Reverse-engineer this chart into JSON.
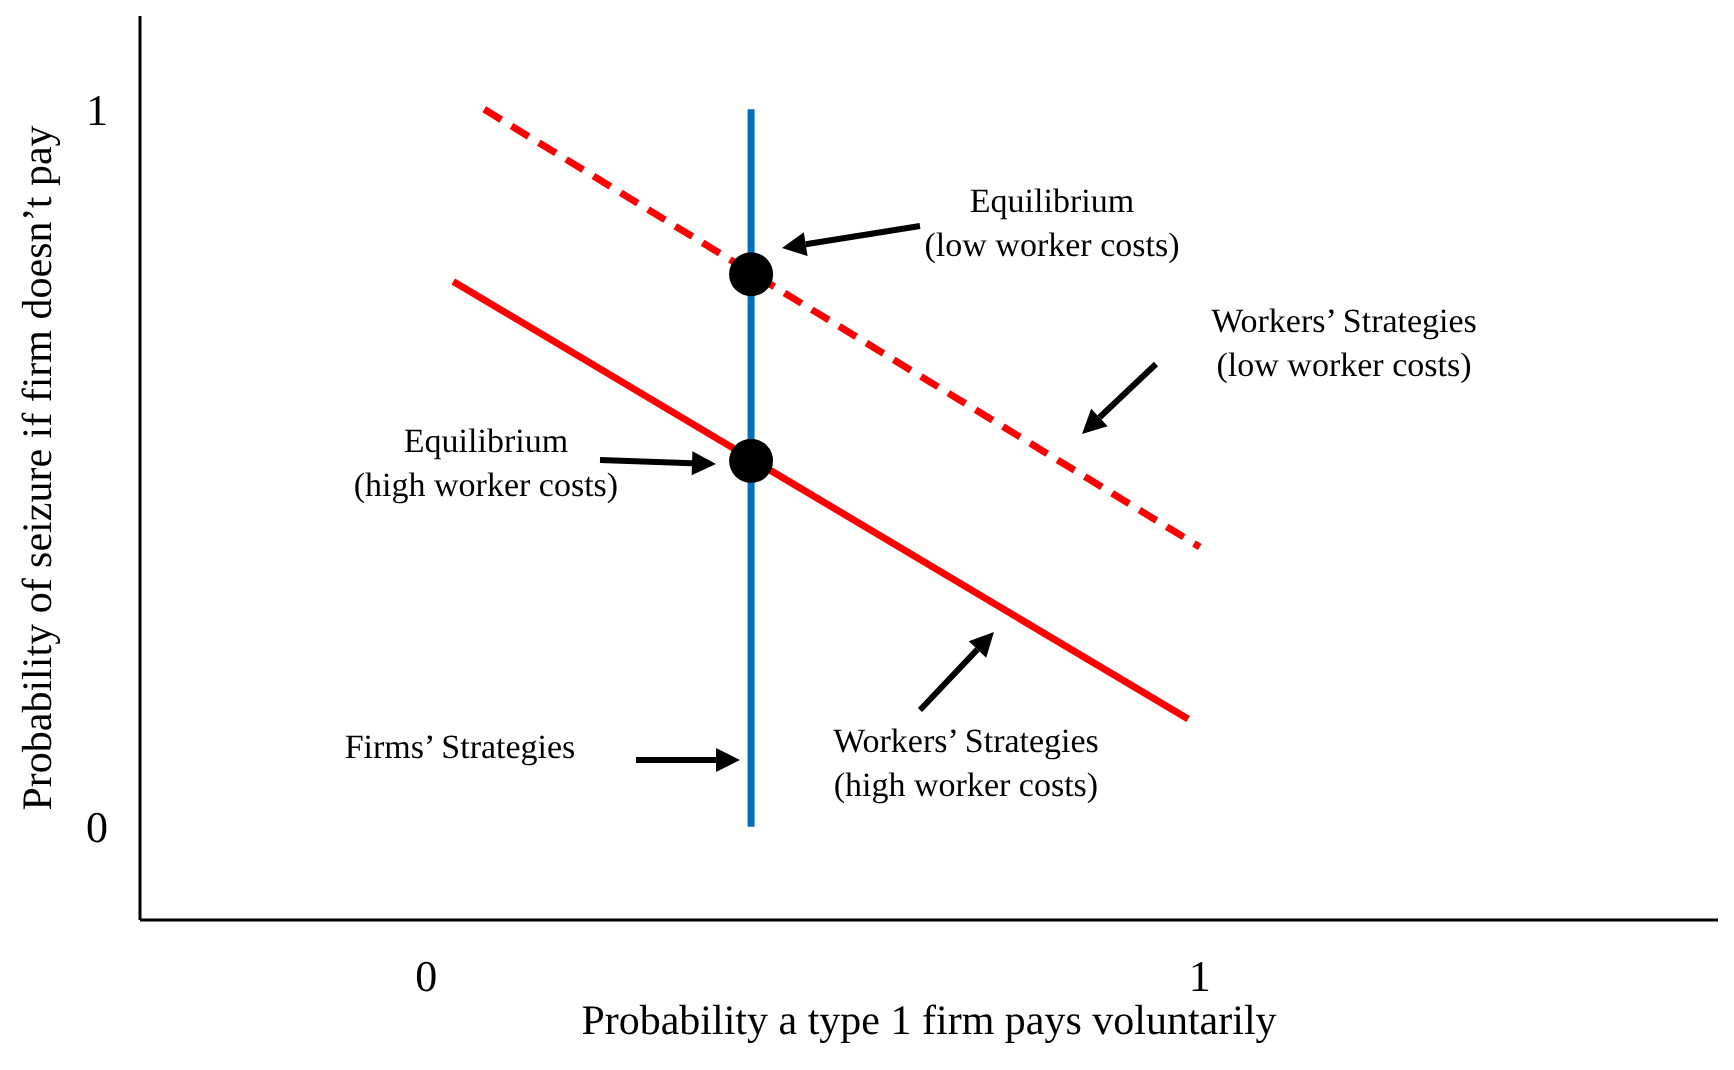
{
  "chart_data": {
    "type": "line",
    "xlabel": "Probability a type 1 firm pays voluntarily",
    "ylabel": "Probability of seizure if firm doesn’t pay",
    "xlim": [
      -0.37,
      1.67
    ],
    "ylim": [
      -0.13,
      1.13
    ],
    "xticks": [
      0,
      1
    ],
    "yticks": [
      0,
      1
    ],
    "grid": false,
    "legend": false,
    "series": [
      {
        "type": "line",
        "color": "#0070c0",
        "x": [
          0.42,
          0.42
        ],
        "values": [
          0,
          1
        ],
        "line_style": "solid"
      },
      {
        "type": "line",
        "color": "#ff0000",
        "x": [
          0.075,
          1.0
        ],
        "values": [
          1.0,
          0.39
        ],
        "line_style": "dashed"
      },
      {
        "type": "line",
        "color": "#ff0000",
        "x": [
          0.035,
          0.985
        ],
        "values": [
          0.76,
          0.15
        ],
        "line_style": "solid"
      },
      {
        "type": "scatter",
        "color": "#000000",
        "x": [
          0.42,
          0.42
        ],
        "values": [
          0.77,
          0.51
        ],
        "marker": "circle"
      }
    ],
    "annotations": [
      "Equilibrium\n(low worker costs)",
      "Workers’ Strategies\n(low worker costs)",
      "Equilibrium\n(high worker costs)",
      "Firms’ Strategies",
      "Workers’ Strategies\n(high worker costs)"
    ]
  }
}
